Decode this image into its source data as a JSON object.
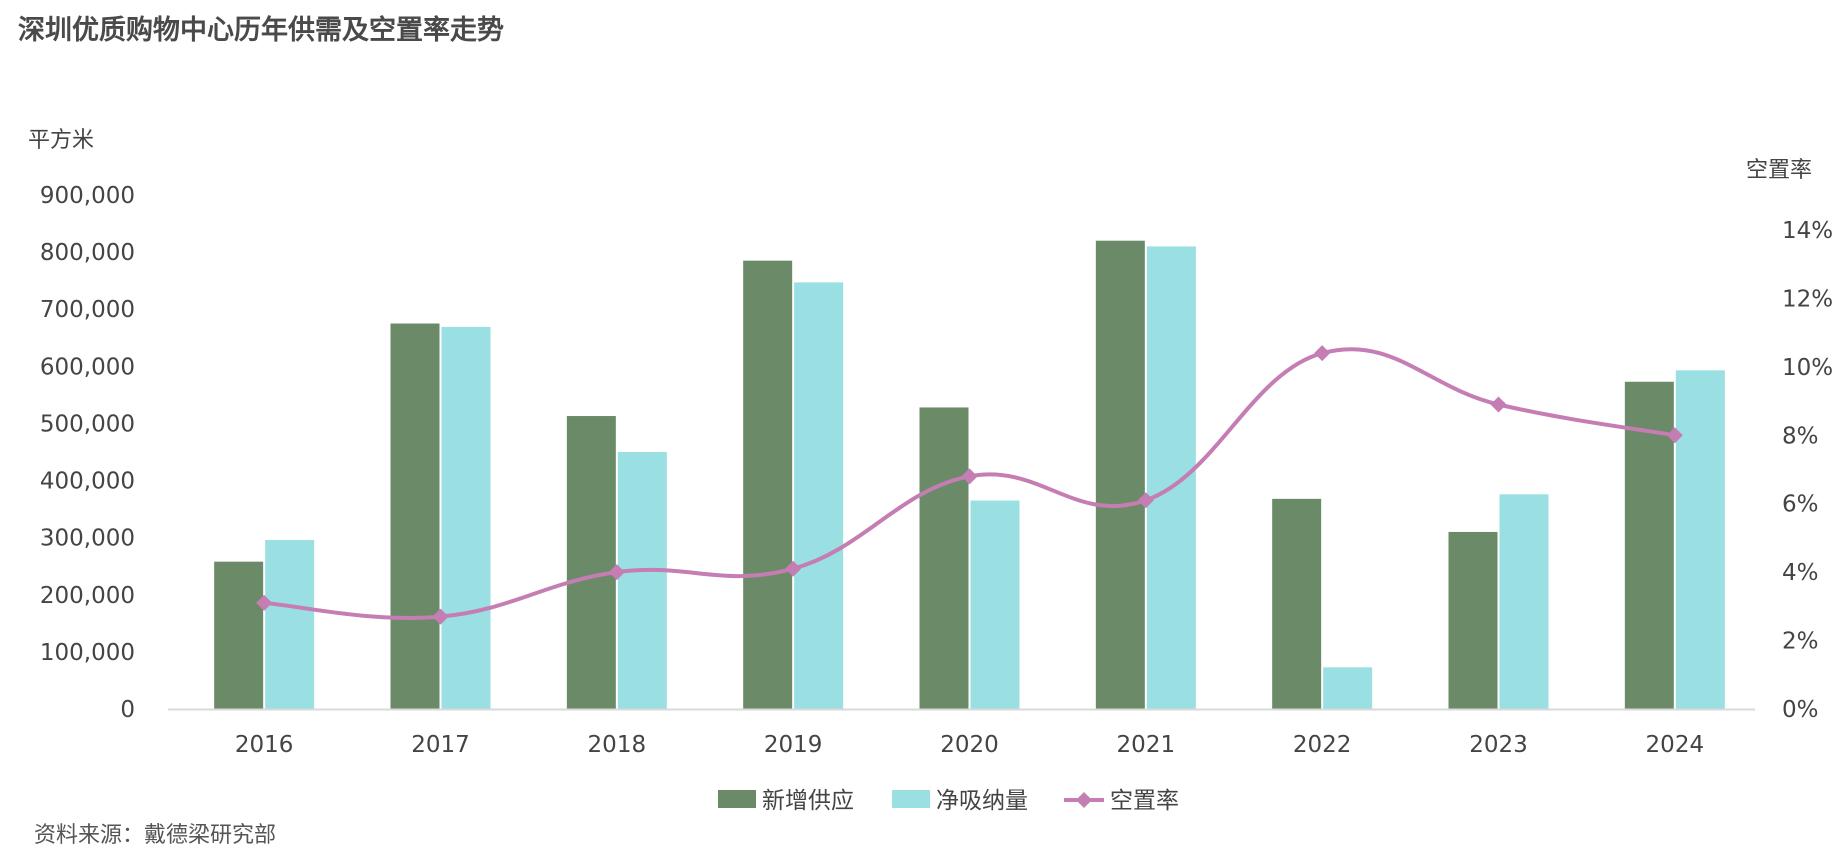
{
  "title": "深圳优质购物中心历年供需及空置率走势",
  "source": "资料来源：戴德梁研究部",
  "chart_data": {
    "type": "bar",
    "categories": [
      "2016",
      "2017",
      "2018",
      "2019",
      "2020",
      "2021",
      "2022",
      "2023",
      "2024"
    ],
    "series": [
      {
        "name": "新增供应",
        "type": "bar",
        "axis": "left",
        "color": "#6b8b68",
        "values": [
          258000,
          675000,
          513000,
          785000,
          528000,
          820000,
          368000,
          310000,
          573000
        ]
      },
      {
        "name": "净吸纳量",
        "type": "bar",
        "axis": "left",
        "color": "#9adfe2",
        "values": [
          296000,
          669000,
          450000,
          747000,
          365000,
          810000,
          73000,
          376000,
          593000
        ]
      },
      {
        "name": "空置率",
        "type": "line",
        "axis": "right",
        "color": "#c57db3",
        "values": [
          3.1,
          2.7,
          4.0,
          4.1,
          6.8,
          6.1,
          10.4,
          8.9,
          8.0
        ]
      }
    ],
    "ylabel_left": "平方米",
    "ylabel_right": "空置率",
    "ylim_left": [
      0,
      900000
    ],
    "ylim_right": [
      0,
      14
    ],
    "yticks_left": [
      "0",
      "100,000",
      "200,000",
      "300,000",
      "400,000",
      "500,000",
      "600,000",
      "700,000",
      "800,000",
      "900,000"
    ],
    "yticks_right": [
      "0%",
      "2%",
      "4%",
      "6%",
      "8%",
      "10%",
      "12%",
      "14%"
    ],
    "legend": "bottom",
    "grid": false
  }
}
